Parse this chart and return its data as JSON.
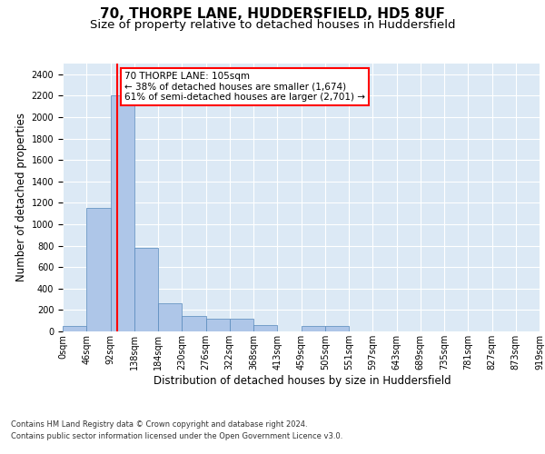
{
  "title_line1": "70, THORPE LANE, HUDDERSFIELD, HD5 8UF",
  "title_line2": "Size of property relative to detached houses in Huddersfield",
  "xlabel": "Distribution of detached houses by size in Huddersfield",
  "ylabel": "Number of detached properties",
  "bin_labels": [
    "0sqm",
    "46sqm",
    "92sqm",
    "138sqm",
    "184sqm",
    "230sqm",
    "276sqm",
    "322sqm",
    "368sqm",
    "413sqm",
    "459sqm",
    "505sqm",
    "551sqm",
    "597sqm",
    "643sqm",
    "689sqm",
    "735sqm",
    "781sqm",
    "827sqm",
    "873sqm",
    "919sqm"
  ],
  "bar_values": [
    50,
    1150,
    2200,
    780,
    260,
    140,
    120,
    120,
    60,
    0,
    50,
    50,
    0,
    0,
    0,
    0,
    0,
    0,
    0,
    0
  ],
  "bar_color": "#aec6e8",
  "bar_edge_color": "#5588bb",
  "highlight_line_color": "red",
  "annotation_text": "70 THORPE LANE: 105sqm\n← 38% of detached houses are smaller (1,674)\n61% of semi-detached houses are larger (2,701) →",
  "annotation_box_color": "white",
  "annotation_box_edge": "red",
  "ylim": [
    0,
    2500
  ],
  "yticks": [
    0,
    200,
    400,
    600,
    800,
    1000,
    1200,
    1400,
    1600,
    1800,
    2000,
    2200,
    2400
  ],
  "plot_bg_color": "#dce9f5",
  "footer_line1": "Contains HM Land Registry data © Crown copyright and database right 2024.",
  "footer_line2": "Contains public sector information licensed under the Open Government Licence v3.0.",
  "title_fontsize": 11,
  "subtitle_fontsize": 9.5,
  "label_fontsize": 8.5,
  "tick_fontsize": 7,
  "annotation_fontsize": 7.5
}
